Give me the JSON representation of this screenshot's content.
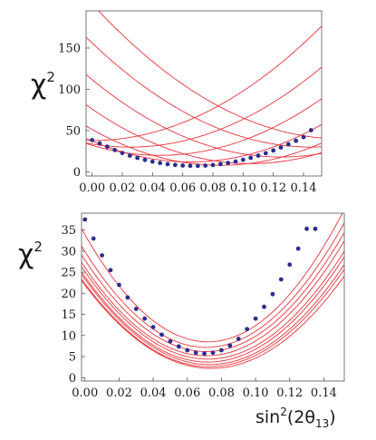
{
  "chart_data": [
    {
      "type": "line",
      "ylabel": "χ",
      "ylabel_sup": "2",
      "xlabel": "",
      "xlim": [
        -0.004,
        0.152
      ],
      "ylim": [
        -5,
        195
      ],
      "xticks": [
        "0.00",
        "0.02",
        "0.04",
        "0.06",
        "0.08",
        "0.10",
        "0.12",
        "0.14"
      ],
      "xtick_values": [
        0,
        0.02,
        0.04,
        0.06,
        0.08,
        0.1,
        0.12,
        0.14
      ],
      "yticks": [
        "0",
        "50",
        "100",
        "150"
      ],
      "ytick_values": [
        0,
        50,
        100,
        150
      ],
      "colors": {
        "curves": "#e8333a",
        "points": "#2b2e8c",
        "frame": "#555555"
      },
      "curves": [
        {
          "min_x": 0.0,
          "min_y": 38,
          "k": 6000
        },
        {
          "min_x": 0.025,
          "min_y": 30,
          "k": 6000
        },
        {
          "min_x": 0.045,
          "min_y": 20,
          "k": 6000
        },
        {
          "min_x": 0.065,
          "min_y": 12,
          "k": 6000
        },
        {
          "min_x": 0.085,
          "min_y": 8,
          "k": 6000
        },
        {
          "min_x": 0.105,
          "min_y": 10,
          "k": 6000
        },
        {
          "min_x": 0.125,
          "min_y": 18,
          "k": 6000
        },
        {
          "min_x": 0.145,
          "min_y": 30,
          "k": 6000
        },
        {
          "min_x": 0.165,
          "min_y": 40,
          "k": 6000
        }
      ],
      "points_x": [
        0.0,
        0.005,
        0.01,
        0.015,
        0.02,
        0.025,
        0.03,
        0.035,
        0.04,
        0.045,
        0.05,
        0.055,
        0.06,
        0.065,
        0.07,
        0.075,
        0.08,
        0.085,
        0.09,
        0.095,
        0.1,
        0.105,
        0.11,
        0.115,
        0.12,
        0.125,
        0.13,
        0.135,
        0.14,
        0.145
      ],
      "points_y": [
        38.5,
        34.5,
        30.5,
        26.5,
        22.8,
        19.6,
        16.9,
        14.5,
        12.4,
        10.7,
        9.4,
        8.4,
        7.7,
        7.3,
        7.3,
        7.6,
        8.3,
        9.4,
        10.8,
        12.5,
        14.6,
        17.0,
        19.7,
        22.6,
        25.9,
        29.5,
        33.4,
        37.6,
        42.1,
        50.5
      ]
    },
    {
      "type": "line",
      "ylabel": "χ",
      "ylabel_sup": "2",
      "xlabel": "sin",
      "xlabel_sup": "2",
      "xlabel_rest": "(2θ",
      "xlabel_sub": "13",
      "xlabel_end": ")",
      "xlim": [
        -0.002,
        0.152
      ],
      "ylim": [
        -0.8,
        39
      ],
      "xticks": [
        "0.00",
        "0.02",
        "0.04",
        "0.06",
        "0.08",
        "0.10",
        "0.12",
        "0.14"
      ],
      "xtick_values": [
        0,
        0.02,
        0.04,
        0.06,
        0.08,
        0.1,
        0.12,
        0.14
      ],
      "yticks": [
        "0",
        "5",
        "10",
        "15",
        "20",
        "25",
        "30",
        "35"
      ],
      "ytick_values": [
        0,
        5,
        10,
        15,
        20,
        25,
        30,
        35
      ],
      "colors": {
        "curves": "#e8333a",
        "points": "#2b2e8c",
        "frame": "#555555"
      },
      "curves": [
        {
          "min_x": 0.072,
          "min_y": 8.5,
          "k": 4900
        },
        {
          "min_x": 0.071,
          "min_y": 7.2,
          "k": 4500
        },
        {
          "min_x": 0.071,
          "min_y": 6.2,
          "k": 4300
        },
        {
          "min_x": 0.071,
          "min_y": 5.2,
          "k": 4150
        },
        {
          "min_x": 0.072,
          "min_y": 4.4,
          "k": 4000
        },
        {
          "min_x": 0.072,
          "min_y": 3.7,
          "k": 3900
        },
        {
          "min_x": 0.073,
          "min_y": 3.1,
          "k": 3800
        },
        {
          "min_x": 0.073,
          "min_y": 2.6,
          "k": 3700
        },
        {
          "min_x": 0.074,
          "min_y": 2.2,
          "k": 3600
        }
      ],
      "points_x": [
        0.0,
        0.005,
        0.01,
        0.015,
        0.02,
        0.025,
        0.03,
        0.035,
        0.04,
        0.045,
        0.05,
        0.055,
        0.06,
        0.065,
        0.07,
        0.075,
        0.08,
        0.085,
        0.09,
        0.095,
        0.1,
        0.105,
        0.11,
        0.115,
        0.12,
        0.125,
        0.13,
        0.135
      ],
      "points_y": [
        37.5,
        33.0,
        29.0,
        25.5,
        22.0,
        19.0,
        16.3,
        14.0,
        12.0,
        10.2,
        8.6,
        7.4,
        6.5,
        5.9,
        5.7,
        5.9,
        6.5,
        7.6,
        9.2,
        11.5,
        14.0,
        16.8,
        19.8,
        23.3,
        26.8,
        30.6,
        35.3,
        35.3
      ]
    }
  ]
}
